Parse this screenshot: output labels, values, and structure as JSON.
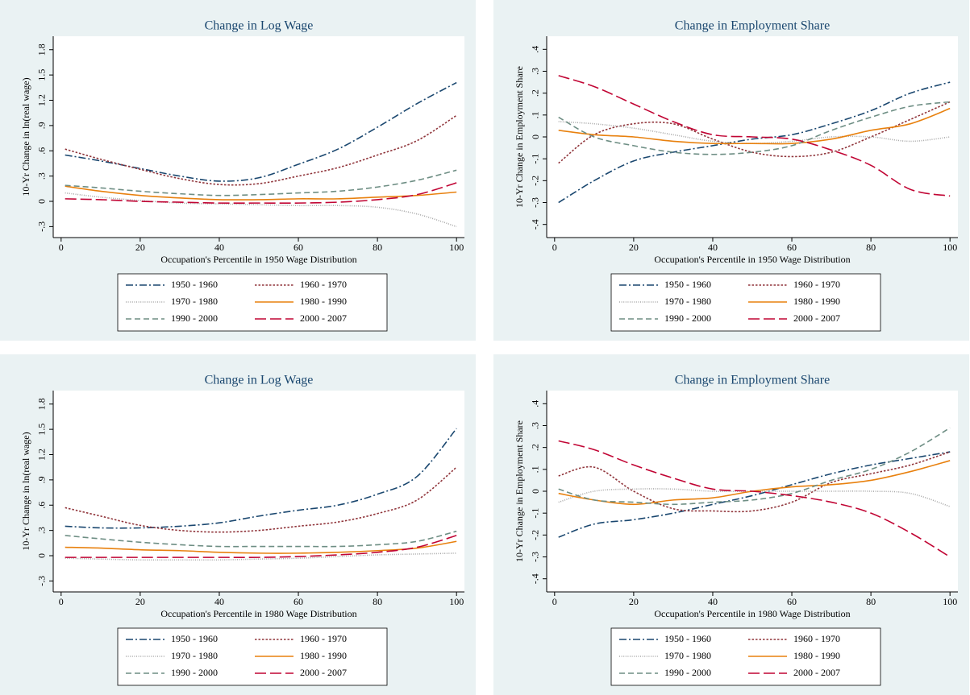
{
  "chart_data": [
    {
      "type": "line",
      "title": "Change in Log Wage",
      "xlabel": "Occupation's Percentile in 1950 Wage Distribution",
      "ylabel": "10-Yr Change in ln(real wage)",
      "x": [
        1,
        10,
        20,
        30,
        40,
        50,
        60,
        70,
        80,
        90,
        100
      ],
      "xlim": [
        -2,
        102
      ],
      "xticks": [
        0,
        20,
        40,
        60,
        80,
        100
      ],
      "ylim": [
        -0.43,
        1.96
      ],
      "yticks": [
        {
          "value": -0.3,
          "label": "-.3"
        },
        0,
        {
          "value": 0.3,
          "label": ".3"
        },
        {
          "value": 0.6,
          "label": ".6"
        },
        {
          "value": 0.9,
          "label": ".9"
        },
        1.2,
        1.5,
        1.8
      ],
      "legend": "bottom",
      "series": [
        {
          "name": "1950 - 1960",
          "color": "#1a476f",
          "line_style": "dash-dot",
          "values": [
            0.55,
            0.48,
            0.39,
            0.3,
            0.24,
            0.28,
            0.44,
            0.62,
            0.88,
            1.16,
            1.41
          ]
        },
        {
          "name": "1960 - 1970",
          "color": "#90353b",
          "line_style": "dot",
          "values": [
            0.62,
            0.5,
            0.38,
            0.27,
            0.2,
            0.21,
            0.3,
            0.4,
            0.55,
            0.72,
            1.02
          ]
        },
        {
          "name": "1970 - 1980",
          "color": "#a8a8a8",
          "line_style": "fine-dot",
          "values": [
            0.1,
            0.05,
            0.01,
            -0.02,
            -0.03,
            -0.04,
            -0.05,
            -0.05,
            -0.07,
            -0.15,
            -0.3
          ]
        },
        {
          "name": "1980 - 1990",
          "color": "#e8810f",
          "line_style": "solid",
          "values": [
            0.18,
            0.12,
            0.07,
            0.04,
            0.02,
            0.02,
            0.03,
            0.03,
            0.05,
            0.07,
            0.11
          ]
        },
        {
          "name": "1990 - 2000",
          "color": "#6e8e84",
          "line_style": "dash",
          "values": [
            0.19,
            0.16,
            0.12,
            0.09,
            0.07,
            0.08,
            0.1,
            0.12,
            0.17,
            0.25,
            0.37
          ]
        },
        {
          "name": "2000 - 2007",
          "color": "#c10534",
          "line_style": "long-dash",
          "values": [
            0.03,
            0.02,
            0.0,
            -0.01,
            -0.02,
            -0.02,
            -0.02,
            -0.01,
            0.02,
            0.08,
            0.22
          ]
        }
      ]
    },
    {
      "type": "line",
      "title": "Change in Employment Share",
      "xlabel": "Occupation's Percentile in 1950 Wage Distribution",
      "ylabel": "10-Yr Change in Employment Share",
      "x": [
        1,
        10,
        20,
        30,
        40,
        50,
        60,
        70,
        80,
        90,
        100
      ],
      "xlim": [
        -2,
        102
      ],
      "xticks": [
        0,
        20,
        40,
        60,
        80,
        100
      ],
      "ylim": [
        -0.46,
        0.46
      ],
      "yticks": [
        {
          "value": -0.4,
          "label": "-.4"
        },
        {
          "value": -0.3,
          "label": "-.3"
        },
        {
          "value": -0.2,
          "label": "-.2"
        },
        {
          "value": -0.1,
          "label": "-.1"
        },
        0,
        {
          "value": 0.1,
          "label": ".1"
        },
        {
          "value": 0.2,
          "label": ".2"
        },
        {
          "value": 0.3,
          "label": ".3"
        },
        {
          "value": 0.4,
          "label": ".4"
        }
      ],
      "legend": "bottom",
      "series": [
        {
          "name": "1950 - 1960",
          "color": "#1a476f",
          "line_style": "dash-dot",
          "values": [
            -0.3,
            -0.2,
            -0.11,
            -0.07,
            -0.04,
            -0.01,
            0.01,
            0.06,
            0.12,
            0.2,
            0.25
          ]
        },
        {
          "name": "1960 - 1970",
          "color": "#90353b",
          "line_style": "dot",
          "values": [
            -0.12,
            0.01,
            0.06,
            0.06,
            -0.01,
            -0.07,
            -0.09,
            -0.07,
            0.0,
            0.08,
            0.16
          ]
        },
        {
          "name": "1970 - 1980",
          "color": "#a8a8a8",
          "line_style": "fine-dot",
          "values": [
            0.07,
            0.06,
            0.04,
            0.01,
            -0.02,
            -0.03,
            -0.02,
            0.0,
            0.0,
            -0.02,
            0.0
          ]
        },
        {
          "name": "1980 - 1990",
          "color": "#e8810f",
          "line_style": "solid",
          "values": [
            0.03,
            0.01,
            0.0,
            -0.02,
            -0.03,
            -0.03,
            -0.03,
            -0.01,
            0.03,
            0.06,
            0.13
          ]
        },
        {
          "name": "1990 - 2000",
          "color": "#6e8e84",
          "line_style": "dash",
          "values": [
            0.09,
            0.0,
            -0.04,
            -0.07,
            -0.08,
            -0.07,
            -0.04,
            0.03,
            0.09,
            0.14,
            0.16
          ]
        },
        {
          "name": "2000 - 2007",
          "color": "#c10534",
          "line_style": "long-dash",
          "values": [
            0.28,
            0.23,
            0.15,
            0.07,
            0.01,
            0.0,
            -0.01,
            -0.06,
            -0.13,
            -0.24,
            -0.27
          ]
        }
      ]
    },
    {
      "type": "line",
      "title": "Change in Log Wage",
      "xlabel": "Occupation's Percentile in 1980 Wage Distribution",
      "ylabel": "10-Yr Change in ln(real wage)",
      "x": [
        1,
        10,
        20,
        30,
        40,
        50,
        60,
        70,
        80,
        90,
        100
      ],
      "xlim": [
        -2,
        102
      ],
      "xticks": [
        0,
        20,
        40,
        60,
        80,
        100
      ],
      "ylim": [
        -0.43,
        1.96
      ],
      "yticks": [
        {
          "value": -0.3,
          "label": "-.3"
        },
        0,
        {
          "value": 0.3,
          "label": ".3"
        },
        {
          "value": 0.6,
          "label": ".6"
        },
        {
          "value": 0.9,
          "label": ".9"
        },
        1.2,
        1.5,
        1.8
      ],
      "legend": "bottom",
      "series": [
        {
          "name": "1950 - 1960",
          "color": "#1a476f",
          "line_style": "dash-dot",
          "values": [
            0.35,
            0.33,
            0.33,
            0.35,
            0.39,
            0.47,
            0.54,
            0.6,
            0.73,
            0.94,
            1.51
          ]
        },
        {
          "name": "1960 - 1970",
          "color": "#90353b",
          "line_style": "dot",
          "values": [
            0.57,
            0.47,
            0.36,
            0.3,
            0.28,
            0.3,
            0.35,
            0.4,
            0.5,
            0.66,
            1.05
          ]
        },
        {
          "name": "1970 - 1980",
          "color": "#a8a8a8",
          "line_style": "fine-dot",
          "values": [
            -0.03,
            -0.04,
            -0.05,
            -0.05,
            -0.05,
            -0.04,
            -0.03,
            -0.01,
            0.01,
            0.02,
            0.03
          ]
        },
        {
          "name": "1980 - 1990",
          "color": "#e8810f",
          "line_style": "solid",
          "values": [
            0.1,
            0.09,
            0.07,
            0.06,
            0.04,
            0.03,
            0.03,
            0.04,
            0.06,
            0.09,
            0.17
          ]
        },
        {
          "name": "1990 - 2000",
          "color": "#6e8e84",
          "line_style": "dash",
          "values": [
            0.24,
            0.2,
            0.16,
            0.13,
            0.11,
            0.11,
            0.11,
            0.11,
            0.13,
            0.17,
            0.29
          ]
        },
        {
          "name": "2000 - 2007",
          "color": "#c10534",
          "line_style": "long-dash",
          "values": [
            -0.02,
            -0.02,
            -0.02,
            -0.02,
            -0.02,
            -0.02,
            -0.01,
            0.01,
            0.04,
            0.1,
            0.24
          ]
        }
      ]
    },
    {
      "type": "line",
      "title": "Change in Employment Share",
      "xlabel": "Occupation's Percentile in 1980 Wage Distribution",
      "ylabel": "10-Yr Change in Employment Share",
      "x": [
        1,
        10,
        20,
        30,
        40,
        50,
        60,
        70,
        80,
        90,
        100
      ],
      "xlim": [
        -2,
        102
      ],
      "xticks": [
        0,
        20,
        40,
        60,
        80,
        100
      ],
      "ylim": [
        -0.46,
        0.46
      ],
      "yticks": [
        {
          "value": -0.4,
          "label": "-.4"
        },
        {
          "value": -0.3,
          "label": "-.3"
        },
        {
          "value": -0.2,
          "label": "-.2"
        },
        {
          "value": -0.1,
          "label": "-.1"
        },
        0,
        {
          "value": 0.1,
          "label": ".1"
        },
        {
          "value": 0.2,
          "label": ".2"
        },
        {
          "value": 0.3,
          "label": ".3"
        },
        {
          "value": 0.4,
          "label": ".4"
        }
      ],
      "legend": "bottom",
      "series": [
        {
          "name": "1950 - 1960",
          "color": "#1a476f",
          "line_style": "dash-dot",
          "values": [
            -0.21,
            -0.15,
            -0.13,
            -0.1,
            -0.06,
            -0.02,
            0.03,
            0.08,
            0.12,
            0.15,
            0.18
          ]
        },
        {
          "name": "1960 - 1970",
          "color": "#90353b",
          "line_style": "dot",
          "values": [
            0.07,
            0.11,
            0.0,
            -0.08,
            -0.09,
            -0.09,
            -0.05,
            0.04,
            0.08,
            0.12,
            0.18
          ]
        },
        {
          "name": "1970 - 1980",
          "color": "#a8a8a8",
          "line_style": "fine-dot",
          "values": [
            -0.05,
            0.0,
            0.01,
            0.01,
            0.0,
            0.0,
            0.0,
            0.0,
            0.0,
            -0.01,
            -0.07
          ]
        },
        {
          "name": "1980 - 1990",
          "color": "#e8810f",
          "line_style": "solid",
          "values": [
            -0.01,
            -0.04,
            -0.06,
            -0.04,
            -0.03,
            0.0,
            0.02,
            0.03,
            0.05,
            0.09,
            0.14
          ]
        },
        {
          "name": "1990 - 2000",
          "color": "#6e8e84",
          "line_style": "dash",
          "values": [
            0.01,
            -0.04,
            -0.05,
            -0.06,
            -0.05,
            -0.04,
            -0.01,
            0.05,
            0.1,
            0.18,
            0.29
          ]
        },
        {
          "name": "2000 - 2007",
          "color": "#c10534",
          "line_style": "long-dash",
          "values": [
            0.23,
            0.19,
            0.12,
            0.06,
            0.01,
            0.0,
            -0.02,
            -0.05,
            -0.1,
            -0.19,
            -0.3
          ]
        }
      ]
    }
  ]
}
